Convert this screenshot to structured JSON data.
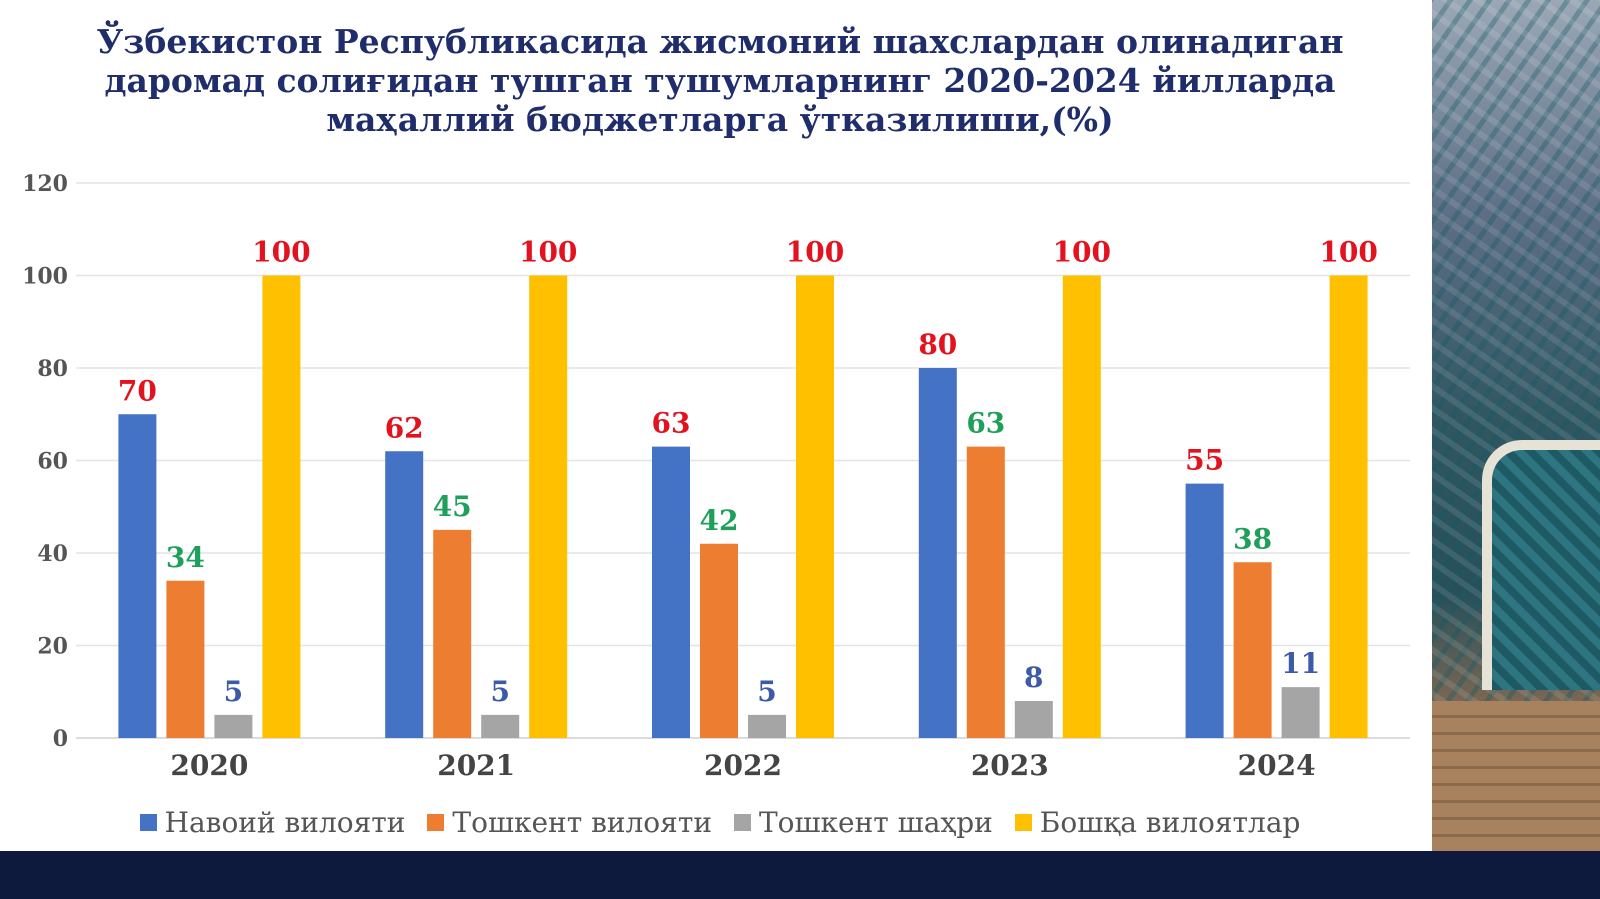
{
  "title_lines": [
    "Ўзбекистон Республикасида жисмоний шахслардан олинадиган",
    "даромад солиғидан тушган тушумларнинг 2020-2024 йилларда",
    "маҳаллий бюджетларга ўтказилиши,(%)"
  ],
  "colors": {
    "title": "#1f2d6b",
    "label_red": "#e3121f",
    "label_green": "#1ea05a",
    "label_blue": "#3c5aa8",
    "footer": "#0e1a3d"
  },
  "chart_data": {
    "type": "bar",
    "title": "Ўзбекистон Республикасида жисмоний шахслардан олинадиган даромад солиғидан тушган тушумларнинг 2020-2024 йилларда маҳаллий бюджетларга ўтказилиши,(%)",
    "categories": [
      "2020",
      "2021",
      "2022",
      "2023",
      "2024"
    ],
    "series": [
      {
        "name": "Навоий вилояти",
        "color": "#4472c4",
        "label_color": "#e3121f",
        "values": [
          70,
          62,
          63,
          80,
          55
        ]
      },
      {
        "name": "Тошкент вилояти",
        "color": "#ed7d31",
        "label_color": "#1ea05a",
        "values": [
          34,
          45,
          42,
          63,
          38
        ]
      },
      {
        "name": "Тошкент шаҳри",
        "color": "#a5a5a5",
        "label_color": "#3c5aa8",
        "values": [
          5,
          5,
          5,
          8,
          11
        ]
      },
      {
        "name": "Бошқа вилоятлар",
        "color": "#ffc000",
        "label_color": "#e3121f",
        "values": [
          100,
          100,
          100,
          100,
          100
        ]
      }
    ],
    "ylim": [
      0,
      120
    ],
    "yticks": [
      0,
      20,
      40,
      60,
      80,
      100,
      120
    ],
    "grid": true,
    "legend": "bottom",
    "data_labels": true
  }
}
